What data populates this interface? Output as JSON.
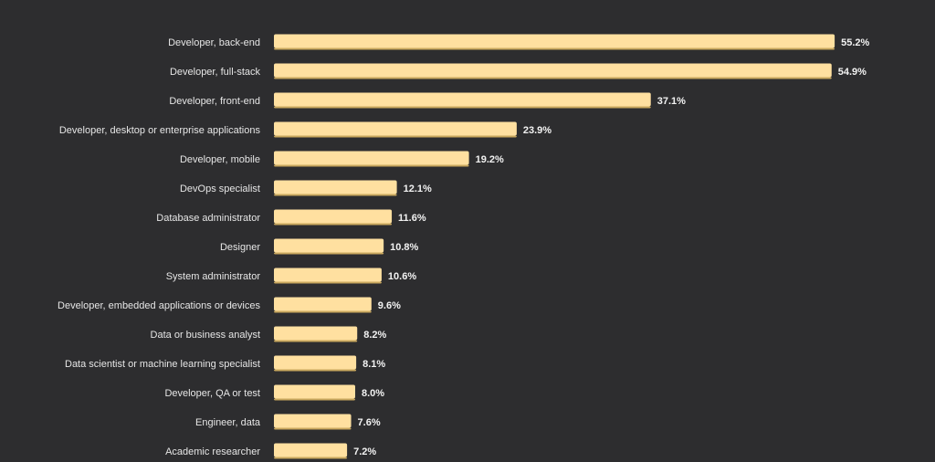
{
  "colors": {
    "background": "#2d2d2f",
    "bar": "#ffe0a0",
    "bar_shadow": "#c9a85e",
    "label_text": "#e6e6e6",
    "value_text": "#f2f2f2"
  },
  "chart_data": {
    "type": "bar",
    "orientation": "horizontal",
    "title": "",
    "xlabel": "",
    "ylabel": "",
    "value_suffix": "%",
    "grid": false,
    "legend": "none",
    "xlim": [
      0,
      60
    ],
    "categories": [
      "Developer, back-end",
      "Developer, full-stack",
      "Developer, front-end",
      "Developer, desktop or enterprise applications",
      "Developer, mobile",
      "DevOps specialist",
      "Database administrator",
      "Designer",
      "System administrator",
      "Developer, embedded applications or devices",
      "Data or business analyst",
      "Data scientist or machine learning specialist",
      "Developer, QA or test",
      "Engineer, data",
      "Academic researcher"
    ],
    "values": [
      55.2,
      54.9,
      37.1,
      23.9,
      19.2,
      12.1,
      11.6,
      10.8,
      10.6,
      9.6,
      8.2,
      8.1,
      8.0,
      7.6,
      7.2
    ],
    "data_labels": [
      "55.2%",
      "54.9%",
      "37.1%",
      "23.9%",
      "19.2%",
      "12.1%",
      "11.6%",
      "10.8%",
      "10.6%",
      "9.6%",
      "8.2%",
      "8.1%",
      "8.0%",
      "7.6%",
      "7.2%"
    ]
  }
}
